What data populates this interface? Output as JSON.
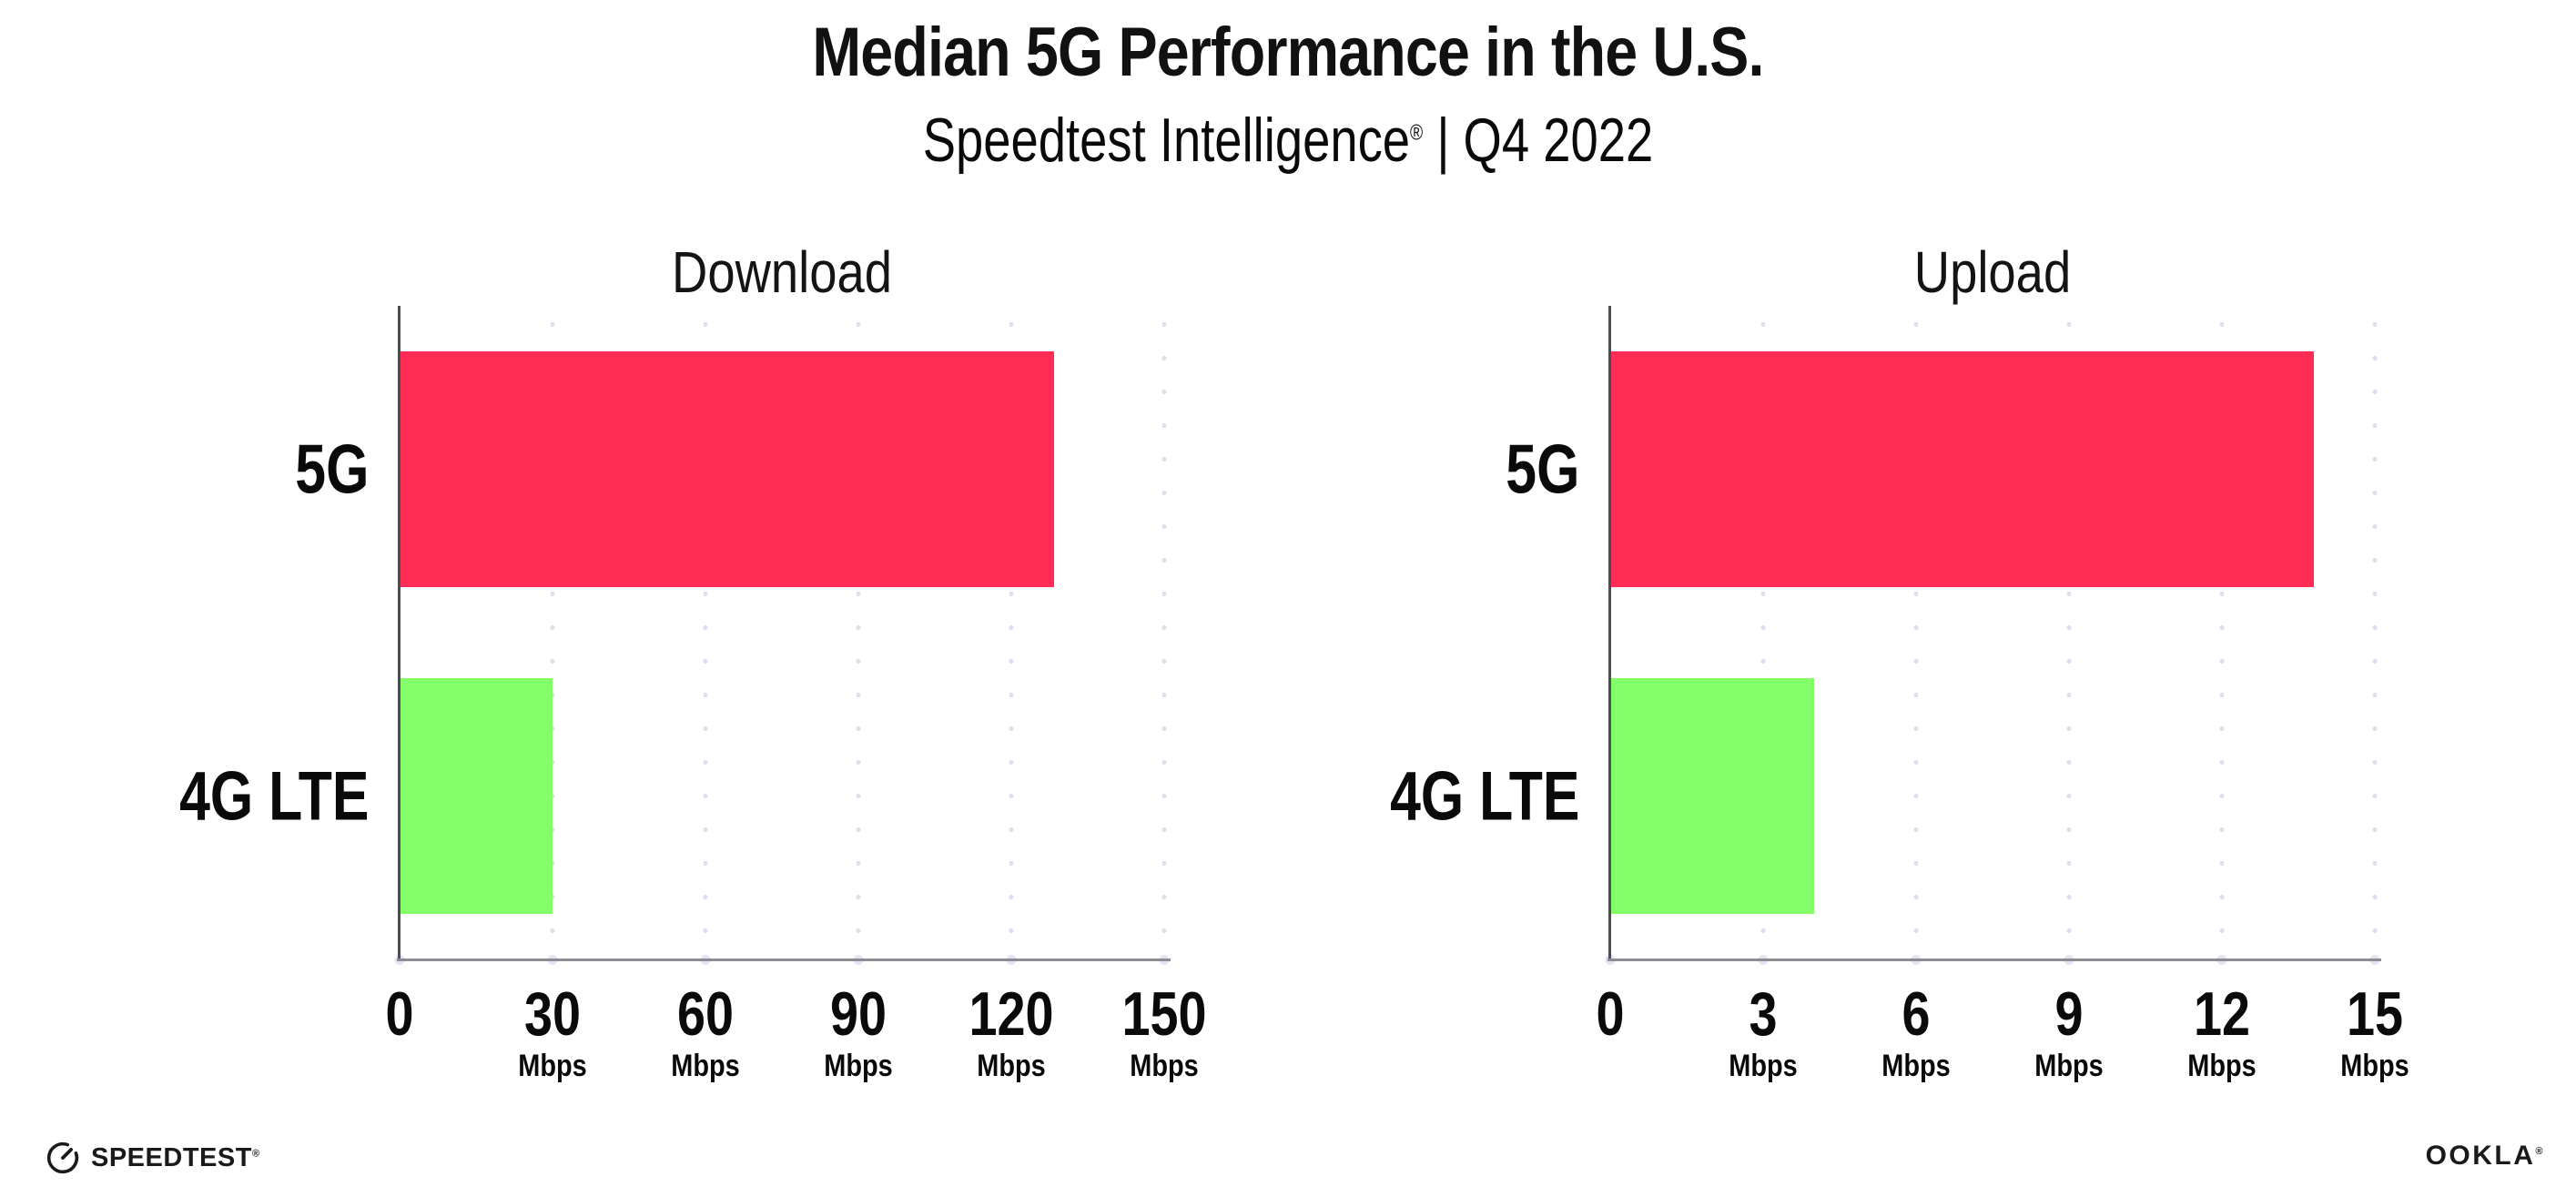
{
  "header": {
    "title": "Median 5G Performance in the U.S.",
    "subtitle_brand": "Speedtest Intelligence",
    "subtitle_reg": "®",
    "subtitle_rest": " | Q4 2022"
  },
  "colors": {
    "bar_5g": "#FF2D55",
    "bar_4g_lte": "#84FF69",
    "y_axis": "#4d4d55",
    "x_axis": "#8d8d93",
    "gridline_dots": "#dcdfee",
    "text": "#0a0a0a",
    "background": "#ffffff"
  },
  "chart_data": [
    {
      "type": "bar",
      "orientation": "horizontal",
      "title": "Download",
      "categories": [
        "5G",
        "4G LTE"
      ],
      "values": [
        128.4,
        30
      ],
      "unit": "Mbps",
      "xlim": [
        0,
        150
      ],
      "xticks": [
        0,
        30,
        60,
        90,
        120,
        150
      ],
      "bar_colors": [
        "#FF2D55",
        "#84FF69"
      ],
      "grid": "dotted-vertical",
      "legend": "none"
    },
    {
      "type": "bar",
      "orientation": "horizontal",
      "title": "Upload",
      "categories": [
        "5G",
        "4G LTE"
      ],
      "values": [
        13.8,
        4
      ],
      "unit": "Mbps",
      "xlim": [
        0,
        15
      ],
      "xticks": [
        0,
        3,
        6,
        9,
        12,
        15
      ],
      "bar_colors": [
        "#FF2D55",
        "#84FF69"
      ],
      "grid": "dotted-vertical",
      "legend": "none"
    }
  ],
  "footer": {
    "speedtest_label": "SPEEDTEST",
    "speedtest_mark": "®",
    "ookla_label": "OOKLA",
    "ookla_mark": "®"
  }
}
